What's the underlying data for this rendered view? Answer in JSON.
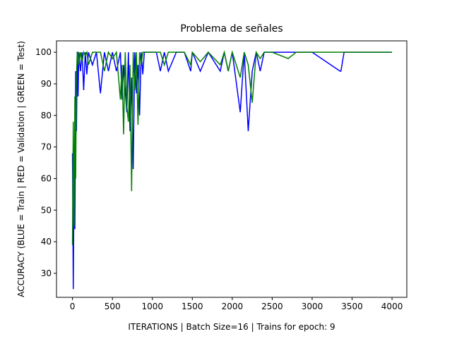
{
  "chart_data": {
    "type": "line",
    "title": "Problema de señales",
    "xlabel": "ITERATIONS | Batch Size=16 | Trains for epoch: 9",
    "ylabel": "ACCURACY (BLUE = Train | RED = Validation | GREEN = Test)",
    "x": [
      0,
      10,
      20,
      30,
      40,
      50,
      60,
      70,
      80,
      100,
      120,
      140,
      160,
      180,
      200,
      250,
      300,
      350,
      400,
      450,
      500,
      550,
      600,
      620,
      640,
      660,
      680,
      700,
      720,
      740,
      760,
      780,
      800,
      820,
      840,
      860,
      880,
      900,
      950,
      1000,
      1050,
      1100,
      1150,
      1200,
      1300,
      1400,
      1480,
      1500,
      1600,
      1700,
      1850,
      1900,
      1950,
      2000,
      2100,
      2150,
      2200,
      2250,
      2300,
      2350,
      2400,
      2500,
      2700,
      2800,
      3000,
      3350,
      3360,
      3400,
      3600,
      4000
    ],
    "series": [
      {
        "color": "#0000ff",
        "values": [
          68,
          25,
          60,
          44,
          94,
          75,
          100,
          86,
          100,
          94,
          100,
          88,
          100,
          93,
          100,
          96,
          100,
          87,
          100,
          94,
          100,
          94,
          100,
          85,
          96,
          88,
          81,
          100,
          75,
          92,
          63,
          100,
          87,
          96,
          80,
          100,
          93,
          100,
          100,
          100,
          100,
          94,
          100,
          94,
          100,
          100,
          94,
          100,
          94,
          100,
          94,
          100,
          94,
          100,
          81,
          100,
          75,
          94,
          100,
          94,
          100,
          100,
          100,
          100,
          100,
          94,
          94,
          100,
          100,
          100
        ]
      },
      {
        "color": "#008000",
        "values": [
          39,
          78,
          45,
          86,
          60,
          92,
          100,
          100,
          96,
          100,
          97,
          100,
          99,
          100,
          96,
          100,
          100,
          100,
          94,
          100,
          98,
          100,
          85,
          96,
          74,
          100,
          83,
          78,
          96,
          56,
          100,
          88,
          100,
          77,
          100,
          96,
          100,
          100,
          100,
          100,
          100,
          100,
          96,
          100,
          100,
          100,
          96,
          100,
          97,
          100,
          96,
          100,
          94,
          100,
          92,
          100,
          96,
          84,
          100,
          98,
          100,
          100,
          98,
          100,
          100,
          100,
          100,
          100,
          100,
          100
        ]
      }
    ],
    "xlim": [
      -200,
      4185
    ],
    "ylim": [
      22.4,
      103.6
    ],
    "xticks": [
      0,
      500,
      1000,
      1500,
      2000,
      2500,
      3000,
      3500,
      4000
    ],
    "yticks": [
      30,
      40,
      50,
      60,
      70,
      80,
      90,
      100
    ],
    "grid": false
  }
}
